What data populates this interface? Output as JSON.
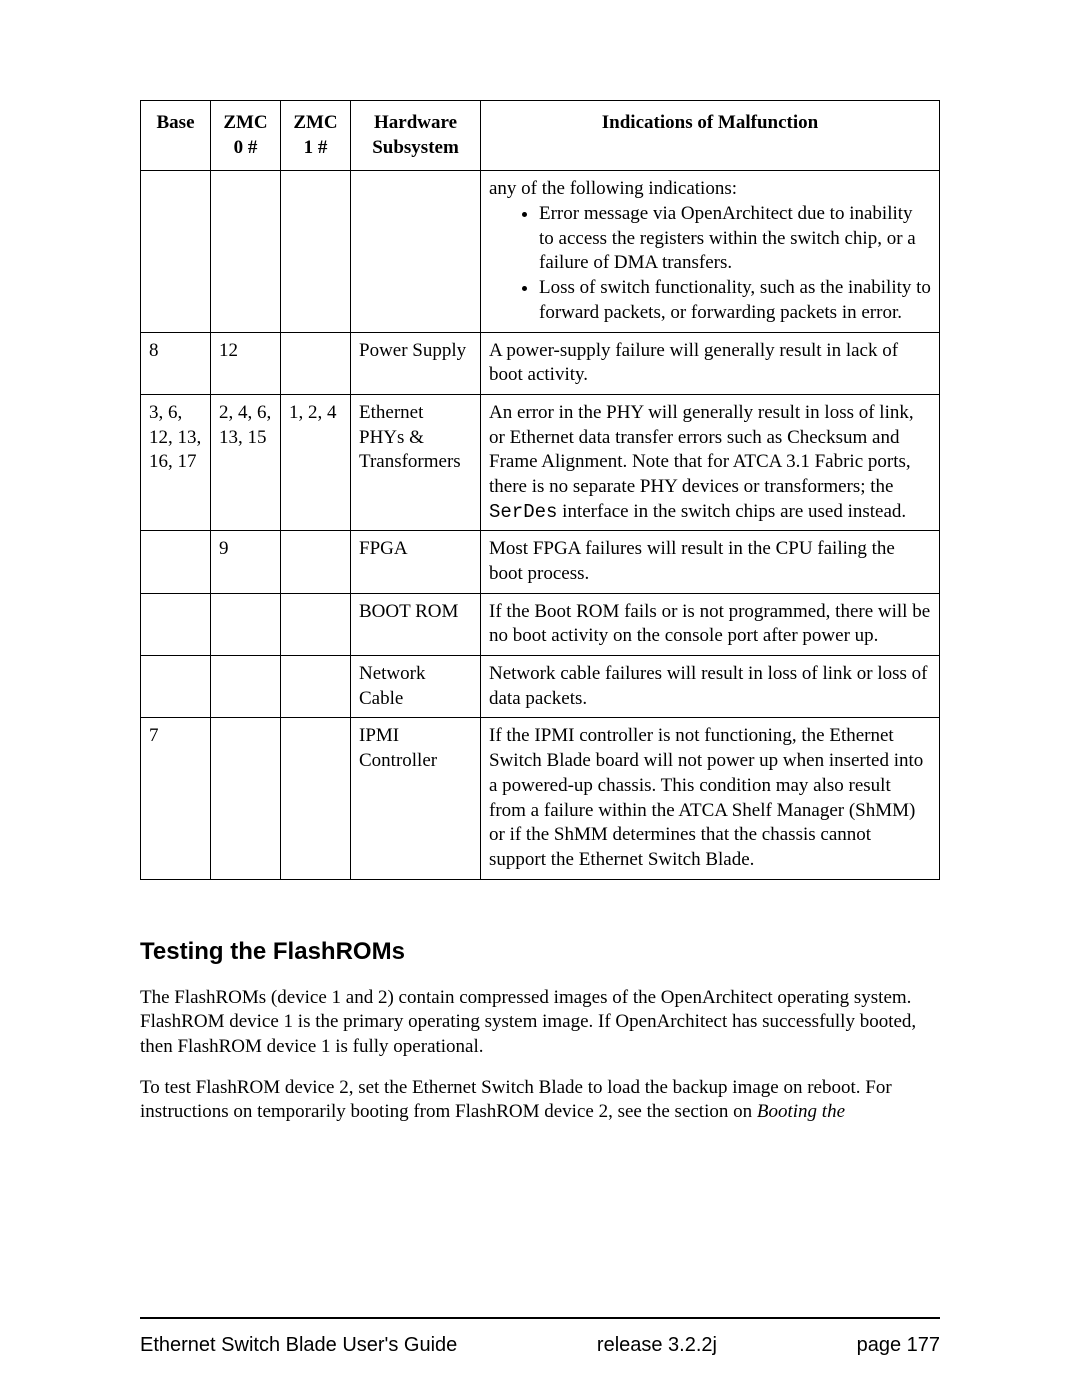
{
  "table": {
    "headers": {
      "base": "Base",
      "zmc0": "ZMC 0 #",
      "zmc1": "ZMC 1 #",
      "hw": "Hardware Subsystem",
      "ind": "Indications of Malfunction"
    },
    "rows": [
      {
        "base": "",
        "zmc0": "",
        "zmc1": "",
        "hw": "",
        "ind_lead": "any of the following indications:",
        "bullets": [
          "Error message via OpenArchitect due to inability to access the registers within the switch chip, or a failure of DMA transfers.",
          "Loss of switch functionality, such as the inability to forward packets, or forwarding packets in error."
        ]
      },
      {
        "base": "8",
        "zmc0": "12",
        "zmc1": "",
        "hw": "Power Supply",
        "ind": "A power-supply failure will generally result in lack of boot activity."
      },
      {
        "base": "3, 6, 12, 13, 16, 17",
        "zmc0": "2, 4, 6, 13, 15",
        "zmc1": "1, 2, 4",
        "hw": "Ethernet PHYs & Transformers",
        "ind_pre": "An error in the PHY will generally result in loss of link, or Ethernet data transfer errors such as Checksum and Frame Alignment. Note that for ATCA 3.1 Fabric ports, there is no separate PHY devices or transformers; the ",
        "ind_mono": "SerDes",
        "ind_post": " interface in the switch chips are used instead."
      },
      {
        "base": "",
        "zmc0": "9",
        "zmc1": "",
        "hw": "FPGA",
        "ind": "Most FPGA failures will result in the CPU failing the boot process."
      },
      {
        "base": "",
        "zmc0": "",
        "zmc1": "",
        "hw": "BOOT ROM",
        "ind": "If the Boot ROM fails or is not programmed, there will be no boot activity on the console port after power up."
      },
      {
        "base": "",
        "zmc0": "",
        "zmc1": "",
        "hw": "Network Cable",
        "ind": "Network cable failures will result in loss of link or loss of data packets."
      },
      {
        "base": "7",
        "zmc0": "",
        "zmc1": "",
        "hw": "IPMI Controller",
        "ind": "If the IPMI controller is not functioning, the Ethernet Switch Blade board will not power up when inserted into a powered-up chassis. This condition may also result from a failure within the ATCA Shelf Manager (ShMM) or if the ShMM determines that the chassis cannot support the Ethernet Switch Blade."
      }
    ]
  },
  "section": {
    "heading": "Testing the FlashROMs",
    "p1": "The FlashROMs (device 1 and 2) contain compressed images of the OpenArchitect operating system. FlashROM device 1 is the primary operating system image. If OpenArchitect has successfully booted, then FlashROM device 1 is fully operational.",
    "p2_pre": "To test FlashROM device 2, set the Ethernet Switch Blade to load the backup image on reboot. For instructions on temporarily booting from FlashROM device 2, see the section on ",
    "p2_italic": "Booting the"
  },
  "footer": {
    "left": "Ethernet Switch Blade User's Guide",
    "center": "release  3.2.2j",
    "right": "page 177"
  }
}
